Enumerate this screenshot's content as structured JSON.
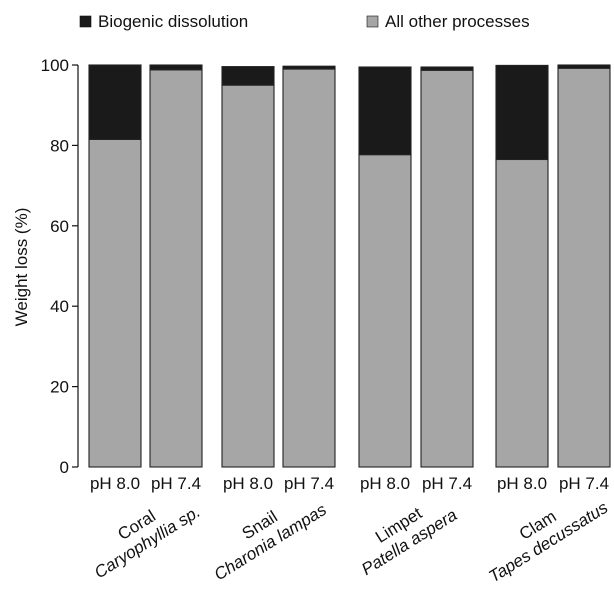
{
  "chart_data": {
    "type": "bar",
    "stacked": true,
    "title": "",
    "xlabel": "",
    "ylabel": "Weight loss (%)",
    "ylim": [
      0,
      100
    ],
    "yticks": [
      0,
      20,
      40,
      60,
      80,
      100
    ],
    "legend": {
      "placement": "top",
      "entries": [
        {
          "label": "Biogenic dissolution",
          "color": "#1a1a1a"
        },
        {
          "label": "All other processes",
          "color": "#a6a6a6"
        }
      ]
    },
    "categories": [
      "pH 8.0",
      "pH 7.4",
      "pH 8.0",
      "pH 7.4",
      "pH 8.0",
      "pH 7.4",
      "pH 8.0",
      "pH 7.4"
    ],
    "groups": [
      {
        "common": "Coral",
        "species": "Caryophyllia sp."
      },
      {
        "common": "Snail",
        "species": "Charonia lampas"
      },
      {
        "common": "Limpet",
        "species": "Patella aspera"
      },
      {
        "common": "Clam",
        "species": "Tapes decussatus"
      }
    ],
    "series": [
      {
        "name": "All other processes",
        "color": "#a6a6a6",
        "values": [
          81.5,
          98.8,
          95.0,
          99.0,
          77.7,
          98.7,
          76.5,
          99.2
        ]
      },
      {
        "name": "Biogenic dissolution",
        "color": "#1a1a1a",
        "values": [
          18.5,
          1.2,
          4.6,
          0.7,
          21.8,
          0.8,
          23.4,
          0.8
        ]
      }
    ]
  }
}
